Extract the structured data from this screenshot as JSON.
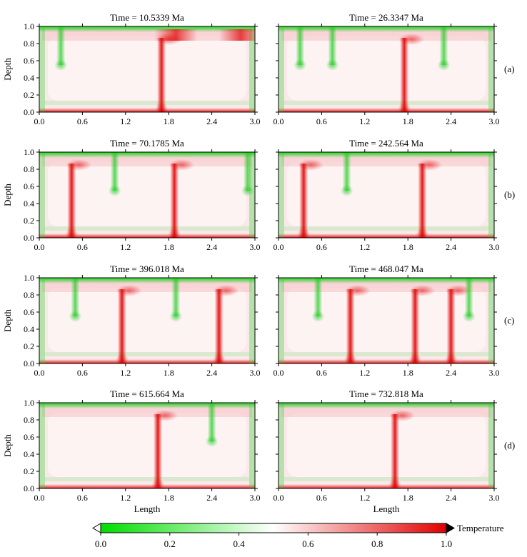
{
  "chart_data": {
    "type": "heatmap",
    "description_free": true,
    "xlabel": "Length",
    "ylabel": "Depth",
    "xlim": [
      0.0,
      3.0
    ],
    "ylim": [
      0.0,
      1.0
    ],
    "x_ticks": [
      "0.0",
      "0.6",
      "1.2",
      "1.8",
      "2.4",
      "3.0"
    ],
    "y_ticks": [
      "0.0",
      "0.2",
      "0.4",
      "0.6",
      "0.8",
      "1.0"
    ],
    "row_labels": [
      "(a)",
      "(b)",
      "(c)",
      "(d)"
    ],
    "panels": [
      {
        "title": "Time = 10.5339 Ma",
        "upwellings": [
          1.7
        ],
        "downwellings": [
          0.3
        ],
        "hot_spot_top": [
          1.9,
          2.8
        ]
      },
      {
        "title": "Time = 26.3347 Ma",
        "upwellings": [
          1.75
        ],
        "downwellings": [
          0.3,
          0.75,
          2.3
        ],
        "hot_spot_top": []
      },
      {
        "title": "Time = 70.1785 Ma",
        "upwellings": [
          0.45,
          1.88
        ],
        "downwellings": [
          1.05,
          2.9
        ],
        "hot_spot_top": []
      },
      {
        "title": "Time = 242.564 Ma",
        "upwellings": [
          0.35,
          2.0
        ],
        "downwellings": [
          0.95
        ],
        "hot_spot_top": []
      },
      {
        "title": "Time = 396.018 Ma",
        "upwellings": [
          1.15,
          2.5
        ],
        "downwellings": [
          0.5,
          1.9
        ],
        "hot_spot_top": []
      },
      {
        "title": "Time = 468.047 Ma",
        "upwellings": [
          1.0,
          1.9,
          2.4
        ],
        "downwellings": [
          0.55,
          2.65
        ],
        "hot_spot_top": []
      },
      {
        "title": "Time = 615.664 Ma",
        "upwellings": [
          1.65
        ],
        "downwellings": [
          2.4
        ],
        "hot_spot_top": []
      },
      {
        "title": "Time = 732.818 Ma",
        "upwellings": [
          1.62
        ],
        "downwellings": [],
        "hot_spot_top": []
      }
    ],
    "colorbar": {
      "label": "Temperature",
      "ticks": [
        "0.0",
        "0.2",
        "0.4",
        "0.6",
        "0.8",
        "1.0"
      ],
      "range": [
        0.0,
        1.0
      ],
      "colors": {
        "low": "#00dd00",
        "mid": "#ffffff",
        "high": "#e00000"
      }
    }
  }
}
